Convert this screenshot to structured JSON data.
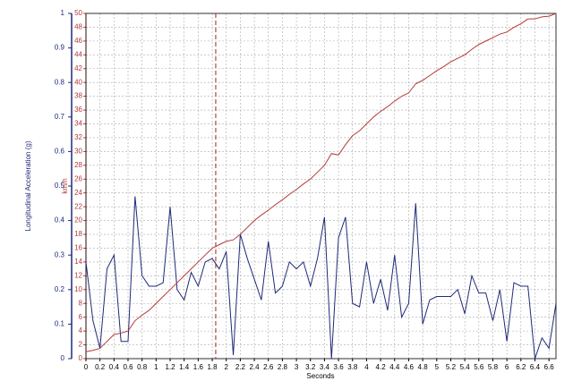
{
  "chart_data": {
    "type": "line",
    "xlabel": "Seconds",
    "ylabel": "Longitudinal Acceleration (g)",
    "y2label": "km/h",
    "x": [
      0,
      0.1,
      0.2,
      0.3,
      0.4,
      0.5,
      0.6,
      0.7,
      0.8,
      0.9,
      1.0,
      1.1,
      1.2,
      1.3,
      1.4,
      1.5,
      1.6,
      1.7,
      1.8,
      1.9,
      2.0,
      2.1,
      2.2,
      2.3,
      2.4,
      2.5,
      2.6,
      2.7,
      2.8,
      2.9,
      3.0,
      3.1,
      3.2,
      3.3,
      3.4,
      3.5,
      3.6,
      3.7,
      3.8,
      3.9,
      4.0,
      4.1,
      4.2,
      4.3,
      4.4,
      4.5,
      4.6,
      4.7,
      4.8,
      4.9,
      5.0,
      5.1,
      5.2,
      5.3,
      5.4,
      5.5,
      5.6,
      5.7,
      5.8,
      5.9,
      6.0,
      6.1,
      6.2,
      6.3,
      6.4,
      6.5,
      6.6,
      6.7
    ],
    "series": [
      {
        "color": "#1f2a78",
        "axis": "y",
        "values": [
          0.28,
          0.11,
          0.03,
          0.26,
          0.3,
          0.05,
          0.05,
          0.47,
          0.24,
          0.21,
          0.21,
          0.22,
          0.44,
          0.2,
          0.17,
          0.25,
          0.21,
          0.28,
          0.29,
          0.26,
          0.31,
          0.01,
          0.36,
          0.29,
          0.23,
          0.17,
          0.34,
          0.19,
          0.21,
          0.28,
          0.26,
          0.28,
          0.21,
          0.29,
          0.41,
          0.0,
          0.35,
          0.41,
          0.16,
          0.15,
          0.28,
          0.16,
          0.23,
          0.14,
          0.3,
          0.12,
          0.16,
          0.45,
          0.1,
          0.17,
          0.18,
          0.18,
          0.18,
          0.2,
          0.13,
          0.24,
          0.19,
          0.19,
          0.11,
          0.2,
          0.05,
          0.22,
          0.21,
          0.21,
          0.0,
          0.06,
          0.03,
          0.16
        ]
      },
      {
        "color": "#b23a3a",
        "axis": "y2",
        "values": [
          1.0,
          1.2,
          1.5,
          2.5,
          3.5,
          3.7,
          4.0,
          5.5,
          6.3,
          7.0,
          8.0,
          9.0,
          10.0,
          11.0,
          12.0,
          13.0,
          14.0,
          15.0,
          16.0,
          16.5,
          17.0,
          17.2,
          18.0,
          19.0,
          20.0,
          20.8,
          21.5,
          22.3,
          23.0,
          23.8,
          24.5,
          25.3,
          26.0,
          27.0,
          28.0,
          29.7,
          29.5,
          31.0,
          32.3,
          33.0,
          34.0,
          35.0,
          35.8,
          36.5,
          37.3,
          38.0,
          38.5,
          39.8,
          40.3,
          41.0,
          41.7,
          42.3,
          43.0,
          43.5,
          44.0,
          44.8,
          45.5,
          46.0,
          46.5,
          47.0,
          47.3,
          48.0,
          48.5,
          49.2,
          49.2,
          49.5,
          49.6,
          50.0
        ]
      }
    ],
    "marker_x": 1.85,
    "marker_color": "#a02020",
    "xlim": [
      0,
      6.7
    ],
    "xticks": [
      0,
      0.2,
      0.4,
      0.6,
      0.8,
      1,
      1.2,
      1.4,
      1.6,
      1.8,
      2,
      2.2,
      2.4,
      2.6,
      2.8,
      3,
      3.2,
      3.4,
      3.6,
      3.8,
      4,
      4.2,
      4.4,
      4.6,
      4.8,
      5,
      5.2,
      5.4,
      5.6,
      5.8,
      6,
      6.2,
      6.4,
      6.6
    ],
    "ylim": [
      0,
      1
    ],
    "yticks": [
      0,
      0.1,
      0.2,
      0.3,
      0.4,
      0.5,
      0.6,
      0.7,
      0.8,
      0.9,
      1
    ],
    "y2lim": [
      0,
      50
    ],
    "y2ticks": [
      0,
      2,
      4,
      6,
      8,
      10,
      12,
      14,
      16,
      18,
      20,
      22,
      24,
      26,
      28,
      30,
      32,
      34,
      36,
      38,
      40,
      42,
      44,
      46,
      48,
      50
    ],
    "grid": true
  }
}
